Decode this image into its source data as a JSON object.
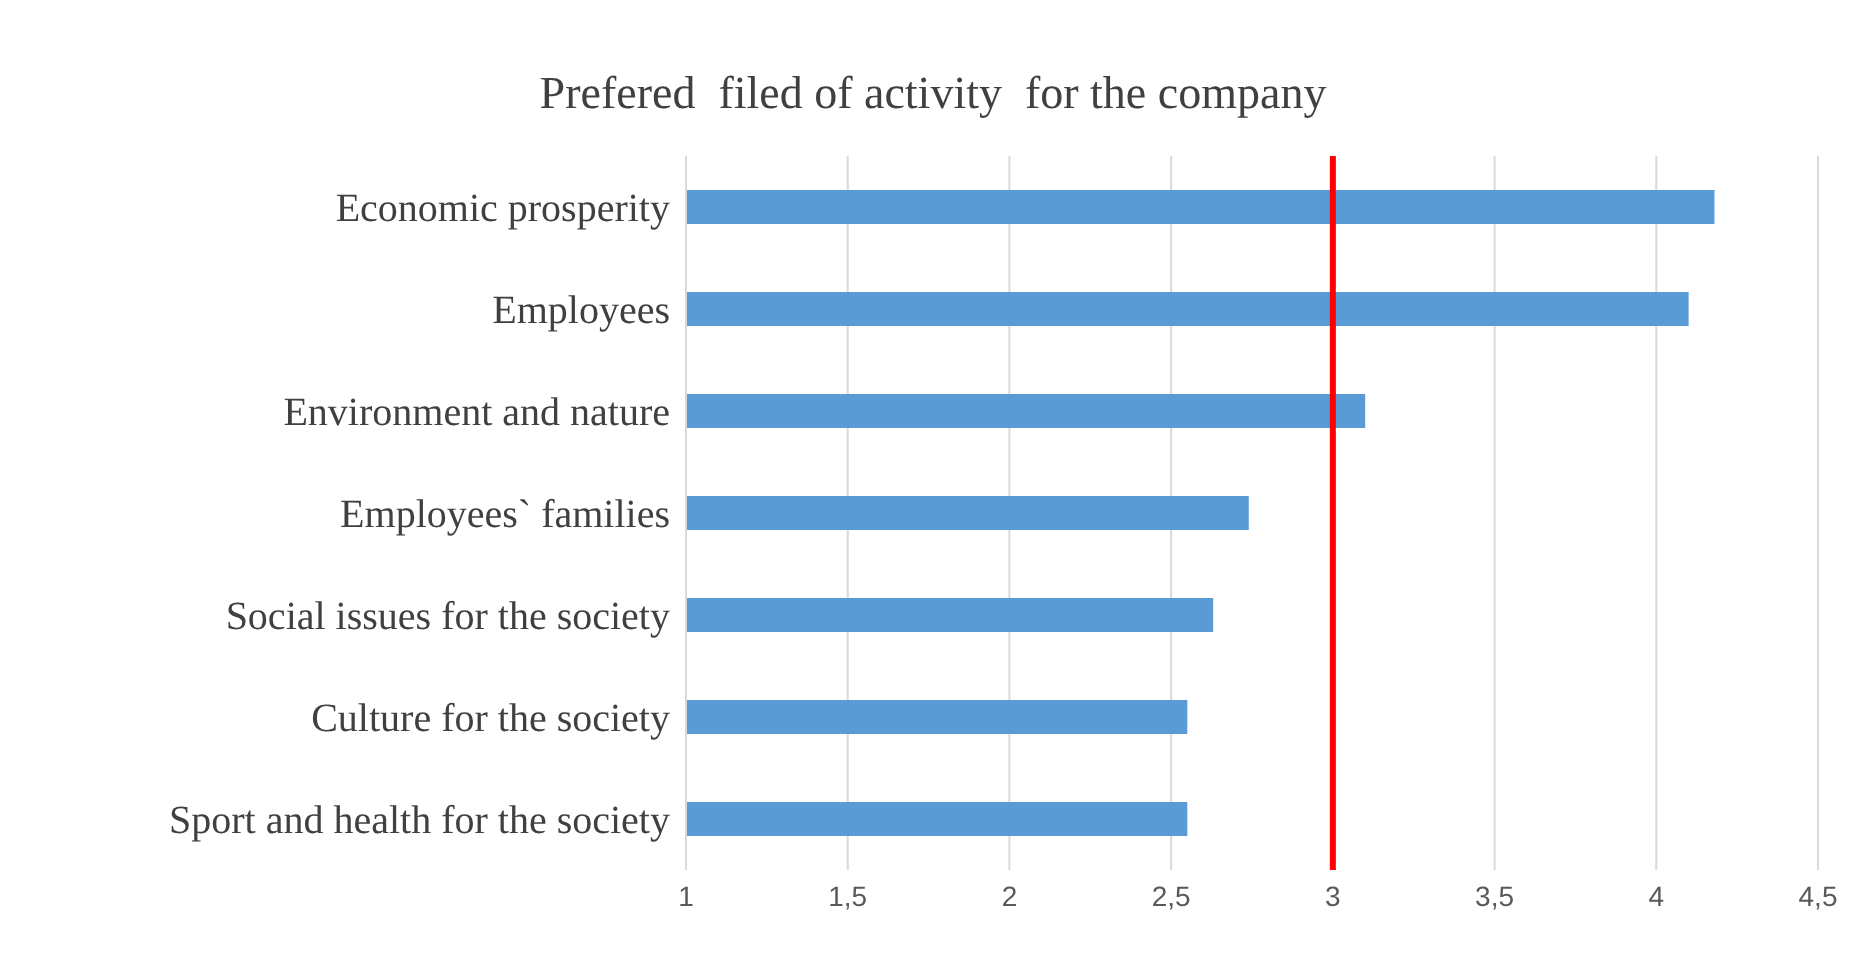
{
  "chart_data": {
    "type": "bar",
    "orientation": "horizontal",
    "title": "Prefered  filed of activity  for the company",
    "categories": [
      "Economic prosperity",
      "Employees",
      "Environment and nature",
      "Employees` families",
      "Social issues for the society",
      "Culture for the society",
      "Sport and health for the society"
    ],
    "values": [
      4.18,
      4.1,
      3.1,
      2.74,
      2.63,
      2.55,
      2.55
    ],
    "color": "#5b9bd5",
    "xlim": [
      1,
      4.5
    ],
    "xticks": [
      1,
      {
        "value": 1.5,
        "label": "1,5"
      },
      2,
      {
        "value": 2.5,
        "label": "2,5"
      },
      3,
      {
        "value": 3.5,
        "label": "3,5"
      },
      4,
      {
        "value": 4.5,
        "label": "4,5"
      }
    ],
    "grid": "x",
    "legend": false,
    "ref_lines": [
      {
        "axis": "x",
        "value": 3,
        "color": "#ff0000"
      }
    ]
  }
}
